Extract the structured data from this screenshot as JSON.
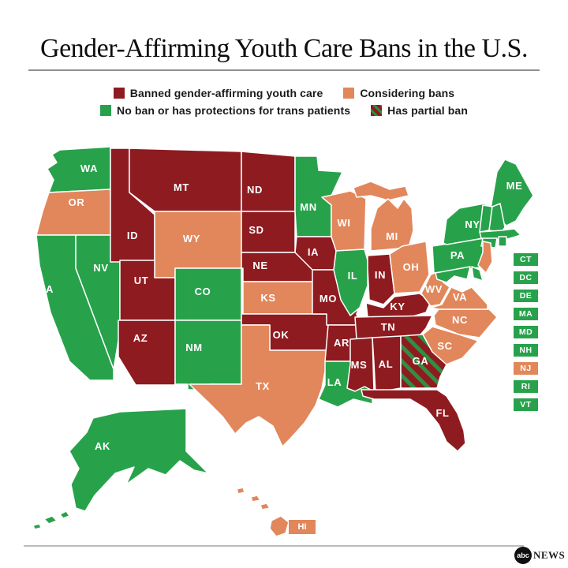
{
  "title": "Gender-Affirming Youth Care Bans in the U.S.",
  "legend": {
    "items": [
      {
        "key": "banned",
        "label": "Banned gender-affirming youth care"
      },
      {
        "key": "considering",
        "label": "Considering bans"
      },
      {
        "key": "none",
        "label": "No ban or has protections for trans patients"
      },
      {
        "key": "partial",
        "label": "Has partial ban"
      }
    ]
  },
  "colors": {
    "banned": "#8E1B20",
    "considering": "#E1875B",
    "none": "#27A24B",
    "partial_base": "#8E1B20",
    "partial_stripe": "#2F8F42",
    "state_border": "#FFFFFF",
    "label_text": "#FFFFFF"
  },
  "states": [
    {
      "abbr": "WA",
      "status": "none"
    },
    {
      "abbr": "OR",
      "status": "considering"
    },
    {
      "abbr": "CA",
      "status": "none"
    },
    {
      "abbr": "NV",
      "status": "none"
    },
    {
      "abbr": "ID",
      "status": "banned"
    },
    {
      "abbr": "MT",
      "status": "banned"
    },
    {
      "abbr": "WY",
      "status": "considering"
    },
    {
      "abbr": "UT",
      "status": "banned"
    },
    {
      "abbr": "CO",
      "status": "none"
    },
    {
      "abbr": "AZ",
      "status": "banned"
    },
    {
      "abbr": "NM",
      "status": "none"
    },
    {
      "abbr": "ND",
      "status": "banned"
    },
    {
      "abbr": "SD",
      "status": "banned"
    },
    {
      "abbr": "NE",
      "status": "banned"
    },
    {
      "abbr": "KS",
      "status": "considering"
    },
    {
      "abbr": "OK",
      "status": "banned"
    },
    {
      "abbr": "TX",
      "status": "considering"
    },
    {
      "abbr": "MN",
      "status": "none"
    },
    {
      "abbr": "IA",
      "status": "banned"
    },
    {
      "abbr": "MO",
      "status": "banned"
    },
    {
      "abbr": "AR",
      "status": "banned"
    },
    {
      "abbr": "LA",
      "status": "none"
    },
    {
      "abbr": "WI",
      "status": "considering"
    },
    {
      "abbr": "IL",
      "status": "none"
    },
    {
      "abbr": "IN",
      "status": "banned"
    },
    {
      "abbr": "MI",
      "status": "considering"
    },
    {
      "abbr": "OH",
      "status": "considering"
    },
    {
      "abbr": "KY",
      "status": "banned"
    },
    {
      "abbr": "TN",
      "status": "banned"
    },
    {
      "abbr": "MS",
      "status": "banned"
    },
    {
      "abbr": "AL",
      "status": "banned"
    },
    {
      "abbr": "GA",
      "status": "partial"
    },
    {
      "abbr": "FL",
      "status": "banned"
    },
    {
      "abbr": "SC",
      "status": "considering"
    },
    {
      "abbr": "NC",
      "status": "considering"
    },
    {
      "abbr": "VA",
      "status": "considering"
    },
    {
      "abbr": "WV",
      "status": "considering"
    },
    {
      "abbr": "PA",
      "status": "none"
    },
    {
      "abbr": "NY",
      "status": "none"
    },
    {
      "abbr": "ME",
      "status": "none"
    },
    {
      "abbr": "VT",
      "status": "none"
    },
    {
      "abbr": "NH",
      "status": "none"
    },
    {
      "abbr": "MA",
      "status": "none"
    },
    {
      "abbr": "CT",
      "status": "none"
    },
    {
      "abbr": "RI",
      "status": "none"
    },
    {
      "abbr": "NJ",
      "status": "considering"
    },
    {
      "abbr": "MD",
      "status": "none"
    },
    {
      "abbr": "DE",
      "status": "none"
    },
    {
      "abbr": "DC",
      "status": "none"
    },
    {
      "abbr": "AK",
      "status": "none"
    },
    {
      "abbr": "HI",
      "status": "considering"
    }
  ],
  "small_state_badges": [
    "CT",
    "DC",
    "DE",
    "MA",
    "MD",
    "NH",
    "NJ",
    "RI",
    "VT"
  ],
  "hawaii_badge": "HI",
  "logo": {
    "circle_text": "abc",
    "text": "NEWS"
  },
  "chart_data": {
    "type": "choropleth",
    "title": "Gender-Affirming Youth Care Bans in the U.S.",
    "categories": [
      "Banned gender-affirming youth care",
      "Considering bans",
      "No ban or has protections for trans patients",
      "Has partial ban"
    ],
    "category_keys": [
      "banned",
      "considering",
      "none",
      "partial"
    ],
    "category_colors": {
      "banned": "#8E1B20",
      "considering": "#E1875B",
      "none": "#27A24B",
      "partial": "#8E1B20 with #2F8F42 diagonal stripes"
    },
    "legend_position": "top",
    "data": {
      "AL": "banned",
      "AK": "none",
      "AZ": "banned",
      "AR": "banned",
      "CA": "none",
      "CO": "none",
      "CT": "none",
      "DC": "none",
      "DE": "none",
      "FL": "banned",
      "GA": "partial",
      "HI": "considering",
      "ID": "banned",
      "IL": "none",
      "IN": "banned",
      "IA": "banned",
      "KS": "considering",
      "KY": "banned",
      "LA": "none",
      "ME": "none",
      "MD": "none",
      "MA": "none",
      "MI": "considering",
      "MN": "none",
      "MS": "banned",
      "MO": "banned",
      "MT": "banned",
      "NE": "banned",
      "NV": "none",
      "NH": "none",
      "NJ": "considering",
      "NM": "none",
      "NY": "none",
      "NC": "considering",
      "ND": "banned",
      "OH": "considering",
      "OK": "banned",
      "OR": "considering",
      "PA": "none",
      "RI": "none",
      "SC": "considering",
      "SD": "banned",
      "TN": "banned",
      "TX": "considering",
      "UT": "banned",
      "VT": "none",
      "VA": "considering",
      "WA": "none",
      "WV": "considering",
      "WI": "considering",
      "WY": "considering"
    }
  }
}
